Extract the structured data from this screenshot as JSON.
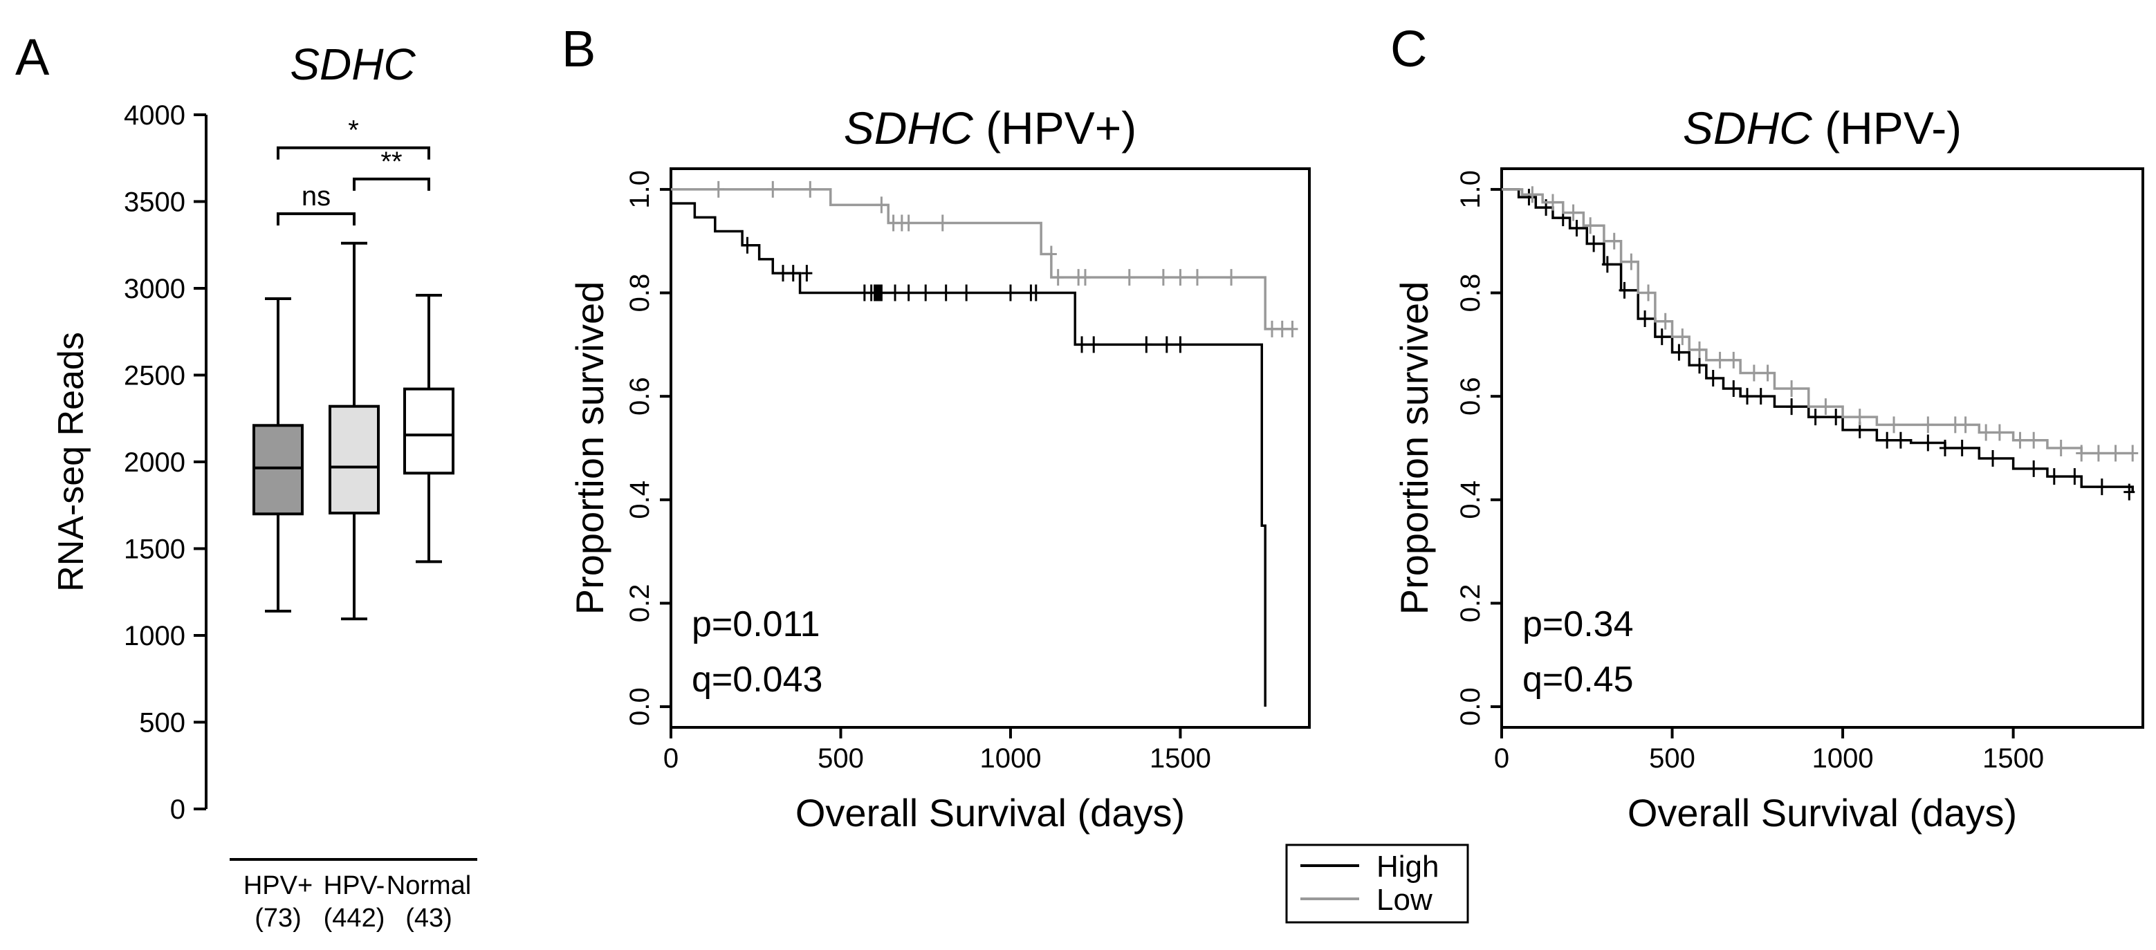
{
  "legend": {
    "items": [
      {
        "label": "High",
        "color": "#000000"
      },
      {
        "label": "Low",
        "color": "#999999"
      }
    ]
  },
  "chart_data": [
    {
      "panel_letter": "A",
      "type": "box",
      "title": "SDHC",
      "ylabel": "RNA-seq Reads",
      "ylim": [
        0,
        4000
      ],
      "yticks": [
        0,
        500,
        1000,
        1500,
        2000,
        2500,
        3000,
        3500,
        4000
      ],
      "groups": [
        {
          "label": "HPV+",
          "n_label": "(73)",
          "fill": "#999999",
          "min": 1140,
          "q1": 1700,
          "median": 1965,
          "q3": 2210,
          "max": 2940
        },
        {
          "label": "HPV-",
          "n_label": "(442)",
          "fill": "#e0e0e0",
          "min": 1095,
          "q1": 1705,
          "median": 1970,
          "q3": 2320,
          "max": 3260
        },
        {
          "label": "Normal",
          "n_label": "(43)",
          "fill": "#ffffff",
          "min": 1425,
          "q1": 1935,
          "median": 2155,
          "q3": 2420,
          "max": 2960
        }
      ],
      "significance": [
        {
          "from": 0,
          "to": 1,
          "label": "ns",
          "y": 3430
        },
        {
          "from": 1,
          "to": 2,
          "label": "**",
          "y": 3630
        },
        {
          "from": 0,
          "to": 2,
          "label": "*",
          "y": 3810
        }
      ],
      "grid": false
    },
    {
      "panel_letter": "B",
      "type": "line",
      "subtype": "kaplan-meier",
      "title_gene": "SDHC",
      "title_suffix": " (HPV+)",
      "xlabel": "Overall Survival (days)",
      "ylabel": "Proportion survived",
      "xlim": [
        0,
        1880
      ],
      "ylim": [
        -0.04,
        1.04
      ],
      "xticks": [
        0,
        500,
        1000,
        1500
      ],
      "yticks": [
        "0.0",
        "0.2",
        "0.4",
        "0.6",
        "0.8",
        "1.0"
      ],
      "pval": "p=0.011",
      "qval": "q=0.043",
      "grid": false,
      "series": [
        {
          "name": "High",
          "color": "#000000",
          "steps": [
            [
              0,
              1.0
            ],
            [
              0,
              0.973
            ],
            [
              70,
              0.946
            ],
            [
              130,
              0.919
            ],
            [
              210,
              0.892
            ],
            [
              260,
              0.865
            ],
            [
              300,
              0.838
            ],
            [
              380,
              0.8
            ],
            [
              1190,
              0.7
            ],
            [
              1740,
              0.35
            ],
            [
              1750,
              0.0
            ]
          ],
          "censor": [
            [
              225,
              0.892
            ],
            [
              330,
              0.838
            ],
            [
              360,
              0.838
            ],
            [
              400,
              0.838
            ],
            [
              570,
              0.8
            ],
            [
              590,
              0.8
            ],
            [
              600,
              0.8
            ],
            [
              605,
              0.8
            ],
            [
              610,
              0.8
            ],
            [
              615,
              0.8
            ],
            [
              620,
              0.8
            ],
            [
              660,
              0.8
            ],
            [
              700,
              0.8
            ],
            [
              750,
              0.8
            ],
            [
              810,
              0.8
            ],
            [
              870,
              0.8
            ],
            [
              1000,
              0.8
            ],
            [
              1060,
              0.8
            ],
            [
              1075,
              0.8
            ],
            [
              1210,
              0.7
            ],
            [
              1245,
              0.7
            ],
            [
              1400,
              0.7
            ],
            [
              1460,
              0.7
            ],
            [
              1500,
              0.7
            ]
          ]
        },
        {
          "name": "Low",
          "color": "#999999",
          "steps": [
            [
              0,
              1.0
            ],
            [
              470,
              0.97
            ],
            [
              640,
              0.935
            ],
            [
              1090,
              0.875
            ],
            [
              1120,
              0.83
            ],
            [
              1750,
              0.73
            ],
            [
              1830,
              0.73
            ]
          ],
          "censor": [
            [
              140,
              1.0
            ],
            [
              300,
              1.0
            ],
            [
              410,
              1.0
            ],
            [
              620,
              0.97
            ],
            [
              655,
              0.935
            ],
            [
              680,
              0.935
            ],
            [
              700,
              0.935
            ],
            [
              800,
              0.935
            ],
            [
              1120,
              0.875
            ],
            [
              1140,
              0.83
            ],
            [
              1200,
              0.83
            ],
            [
              1220,
              0.83
            ],
            [
              1350,
              0.83
            ],
            [
              1450,
              0.83
            ],
            [
              1500,
              0.83
            ],
            [
              1550,
              0.83
            ],
            [
              1650,
              0.83
            ],
            [
              1770,
              0.73
            ],
            [
              1800,
              0.73
            ],
            [
              1830,
              0.73
            ]
          ]
        }
      ]
    },
    {
      "panel_letter": "C",
      "type": "line",
      "subtype": "kaplan-meier",
      "title_gene": "SDHC",
      "title_suffix": " (HPV-)",
      "xlabel": "Overall Survival (days)",
      "ylabel": "Proportion survived",
      "xlim": [
        0,
        1880
      ],
      "ylim": [
        -0.04,
        1.04
      ],
      "xticks": [
        0,
        500,
        1000,
        1500
      ],
      "yticks": [
        "0.0",
        "0.2",
        "0.4",
        "0.6",
        "0.8",
        "1.0"
      ],
      "pval": "p=0.34",
      "qval": "q=0.45",
      "grid": false,
      "series": [
        {
          "name": "High",
          "color": "#000000",
          "steps": [
            [
              0,
              1.0
            ],
            [
              50,
              0.985
            ],
            [
              100,
              0.965
            ],
            [
              150,
              0.945
            ],
            [
              200,
              0.925
            ],
            [
              250,
              0.895
            ],
            [
              300,
              0.855
            ],
            [
              350,
              0.805
            ],
            [
              400,
              0.75
            ],
            [
              450,
              0.715
            ],
            [
              500,
              0.685
            ],
            [
              550,
              0.66
            ],
            [
              600,
              0.635
            ],
            [
              650,
              0.615
            ],
            [
              700,
              0.6
            ],
            [
              800,
              0.58
            ],
            [
              900,
              0.56
            ],
            [
              1000,
              0.535
            ],
            [
              1100,
              0.515
            ],
            [
              1200,
              0.51
            ],
            [
              1300,
              0.5
            ],
            [
              1400,
              0.48
            ],
            [
              1500,
              0.46
            ],
            [
              1600,
              0.445
            ],
            [
              1700,
              0.425
            ],
            [
              1850,
              0.415
            ]
          ],
          "censor": [
            [
              80,
              0.985
            ],
            [
              130,
              0.965
            ],
            [
              180,
              0.945
            ],
            [
              220,
              0.925
            ],
            [
              270,
              0.895
            ],
            [
              310,
              0.855
            ],
            [
              360,
              0.805
            ],
            [
              420,
              0.75
            ],
            [
              470,
              0.715
            ],
            [
              520,
              0.685
            ],
            [
              580,
              0.66
            ],
            [
              620,
              0.635
            ],
            [
              680,
              0.615
            ],
            [
              720,
              0.6
            ],
            [
              760,
              0.6
            ],
            [
              850,
              0.58
            ],
            [
              920,
              0.56
            ],
            [
              980,
              0.56
            ],
            [
              1050,
              0.535
            ],
            [
              1130,
              0.515
            ],
            [
              1170,
              0.515
            ],
            [
              1250,
              0.51
            ],
            [
              1300,
              0.5
            ],
            [
              1350,
              0.5
            ],
            [
              1440,
              0.48
            ],
            [
              1560,
              0.46
            ],
            [
              1620,
              0.445
            ],
            [
              1680,
              0.445
            ],
            [
              1760,
              0.425
            ],
            [
              1840,
              0.415
            ]
          ]
        },
        {
          "name": "Low",
          "color": "#999999",
          "steps": [
            [
              0,
              1.0
            ],
            [
              60,
              0.99
            ],
            [
              120,
              0.975
            ],
            [
              180,
              0.955
            ],
            [
              240,
              0.93
            ],
            [
              300,
              0.9
            ],
            [
              350,
              0.86
            ],
            [
              400,
              0.8
            ],
            [
              450,
              0.745
            ],
            [
              500,
              0.715
            ],
            [
              550,
              0.69
            ],
            [
              600,
              0.67
            ],
            [
              700,
              0.645
            ],
            [
              800,
              0.615
            ],
            [
              900,
              0.58
            ],
            [
              1000,
              0.56
            ],
            [
              1100,
              0.545
            ],
            [
              1300,
              0.545
            ],
            [
              1400,
              0.53
            ],
            [
              1500,
              0.515
            ],
            [
              1600,
              0.5
            ],
            [
              1700,
              0.49
            ],
            [
              1850,
              0.49
            ]
          ],
          "censor": [
            [
              90,
              0.99
            ],
            [
              150,
              0.975
            ],
            [
              210,
              0.955
            ],
            [
              260,
              0.93
            ],
            [
              330,
              0.9
            ],
            [
              380,
              0.86
            ],
            [
              430,
              0.8
            ],
            [
              480,
              0.745
            ],
            [
              530,
              0.715
            ],
            [
              580,
              0.69
            ],
            [
              640,
              0.67
            ],
            [
              680,
              0.67
            ],
            [
              740,
              0.645
            ],
            [
              780,
              0.645
            ],
            [
              850,
              0.615
            ],
            [
              950,
              0.58
            ],
            [
              1050,
              0.56
            ],
            [
              1150,
              0.545
            ],
            [
              1250,
              0.545
            ],
            [
              1330,
              0.545
            ],
            [
              1360,
              0.545
            ],
            [
              1420,
              0.53
            ],
            [
              1460,
              0.53
            ],
            [
              1520,
              0.515
            ],
            [
              1560,
              0.515
            ],
            [
              1640,
              0.5
            ],
            [
              1700,
              0.49
            ],
            [
              1750,
              0.49
            ],
            [
              1800,
              0.49
            ],
            [
              1850,
              0.49
            ]
          ]
        }
      ]
    }
  ]
}
